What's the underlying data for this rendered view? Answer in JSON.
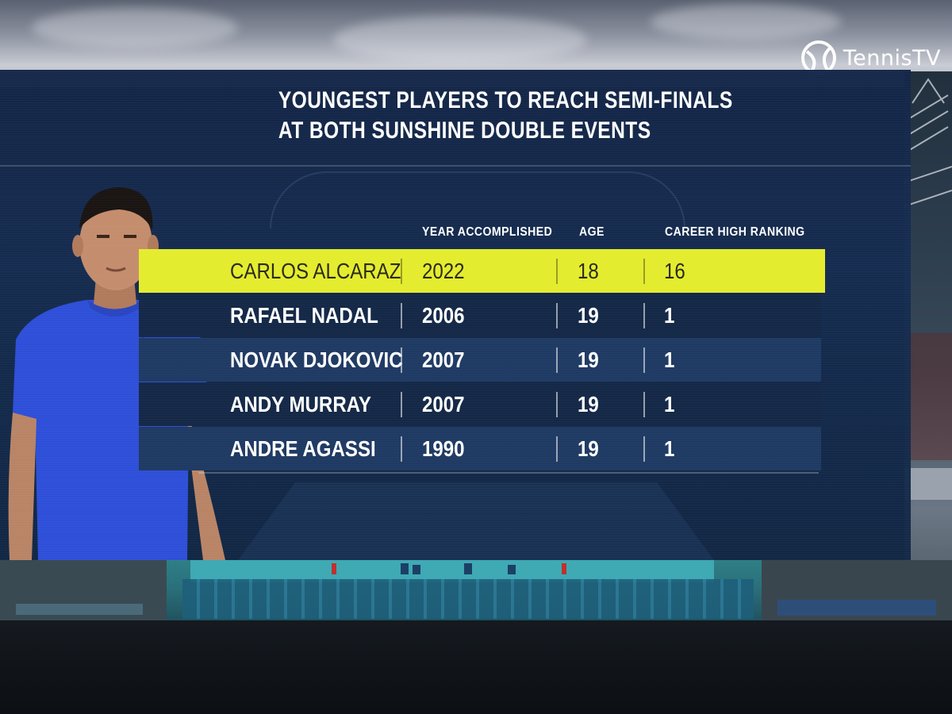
{
  "broadcast": {
    "logo_text": "TennisTV"
  },
  "graphic": {
    "title_line_1": "YOUNGEST PLAYERS TO REACH SEMI-FINALS",
    "title_line_2": "AT BOTH SUNSHINE DOUBLE EVENTS",
    "columns": [
      "YEAR ACCOMPLISHED",
      "AGE",
      "CAREER HIGH RANKING"
    ],
    "highlight_color": "#e4ec2e",
    "rows": [
      {
        "player": "CARLOS ALCARAZ",
        "year": "2022",
        "age": "18",
        "ranking": "16"
      },
      {
        "player": "RAFAEL NADAL",
        "year": "2006",
        "age": "19",
        "ranking": "1"
      },
      {
        "player": "NOVAK DJOKOVIC",
        "year": "2007",
        "age": "19",
        "ranking": "1"
      },
      {
        "player": "ANDY MURRAY",
        "year": "2007",
        "age": "19",
        "ranking": "1"
      },
      {
        "player": "ANDRE AGASSI",
        "year": "1990",
        "age": "19",
        "ranking": "1"
      }
    ]
  },
  "colors": {
    "panel": "#16305a",
    "row_dark": "#162a4c",
    "row_light": "#1f3a63",
    "shirt": "#2e4fd8"
  }
}
